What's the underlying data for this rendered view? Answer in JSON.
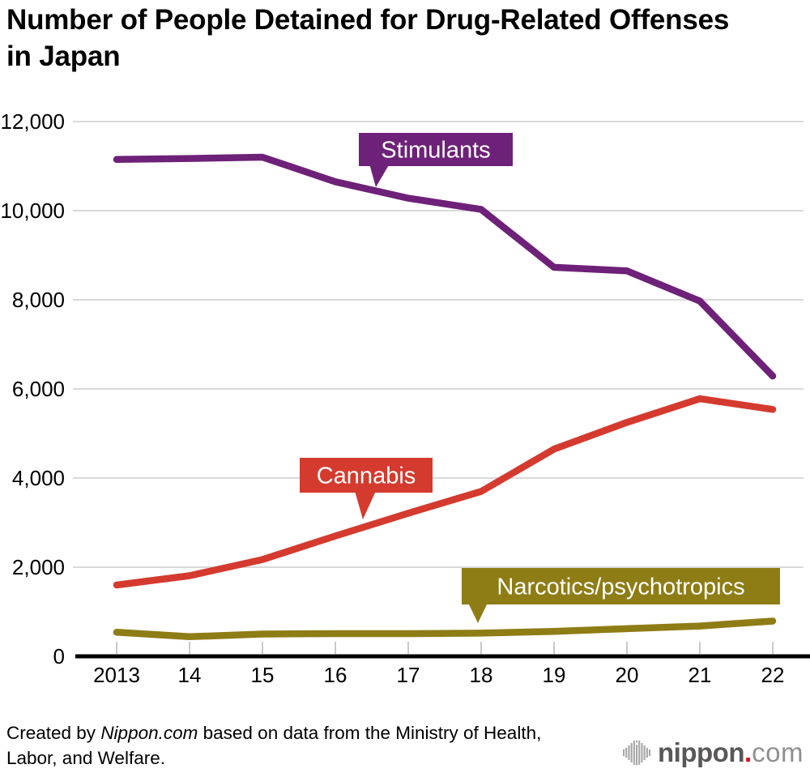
{
  "title": "Number of People Detained for Drug-Related Offenses in Japan",
  "footer": {
    "prefix": "Created by ",
    "source": "Nippon.com",
    "rest_line1": " based on data from the Ministry of Health,",
    "line2": "Labor, and Welfare."
  },
  "logo": {
    "icon": "soundwave-bars-icon",
    "name": "nippon",
    "dot": ".",
    "tld": "com"
  },
  "colors": {
    "grid": "#d9d9d9",
    "tick": "#c9c9c9",
    "axis": "#000000",
    "label_text": "#000000",
    "callout_text": "#ffffff",
    "logo_dark": "#595757",
    "logo_light": "#8f9091",
    "logo_red": "#e60012",
    "logo_bars": "#a6a6a6"
  },
  "chart_data": {
    "type": "line",
    "title": "Number of People Detained for Drug-Related Offenses in Japan",
    "x": [
      2013,
      2014,
      2015,
      2016,
      2017,
      2018,
      2019,
      2020,
      2021,
      2022
    ],
    "x_tick_labels": [
      "2013",
      "14",
      "15",
      "16",
      "17",
      "18",
      "19",
      "20",
      "21",
      "22"
    ],
    "xlabel": "",
    "ylabel": "",
    "ylim": [
      0,
      12000
    ],
    "y_ticks": [
      0,
      2000,
      4000,
      6000,
      8000,
      10000,
      12000
    ],
    "y_tick_labels": [
      "0",
      "2,000",
      "4,000",
      "6,000",
      "8,000",
      "10,000",
      "12,000"
    ],
    "grid": "horizontal",
    "legend_position": "inline-callout-labels",
    "series": [
      {
        "name": "Stimulants",
        "color": "#6e2178",
        "values": [
          11150,
          11170,
          11200,
          10650,
          10280,
          10030,
          8730,
          8650,
          7970,
          6290
        ]
      },
      {
        "name": "Cannabis",
        "color": "#d53a2f",
        "values": [
          1600,
          1810,
          2170,
          2700,
          3210,
          3700,
          4650,
          5250,
          5780,
          5540
        ]
      },
      {
        "name": "Narcotics/psychotropics",
        "color": "#8e7c15",
        "values": [
          540,
          440,
          500,
          510,
          510,
          520,
          560,
          620,
          680,
          790
        ]
      }
    ]
  }
}
